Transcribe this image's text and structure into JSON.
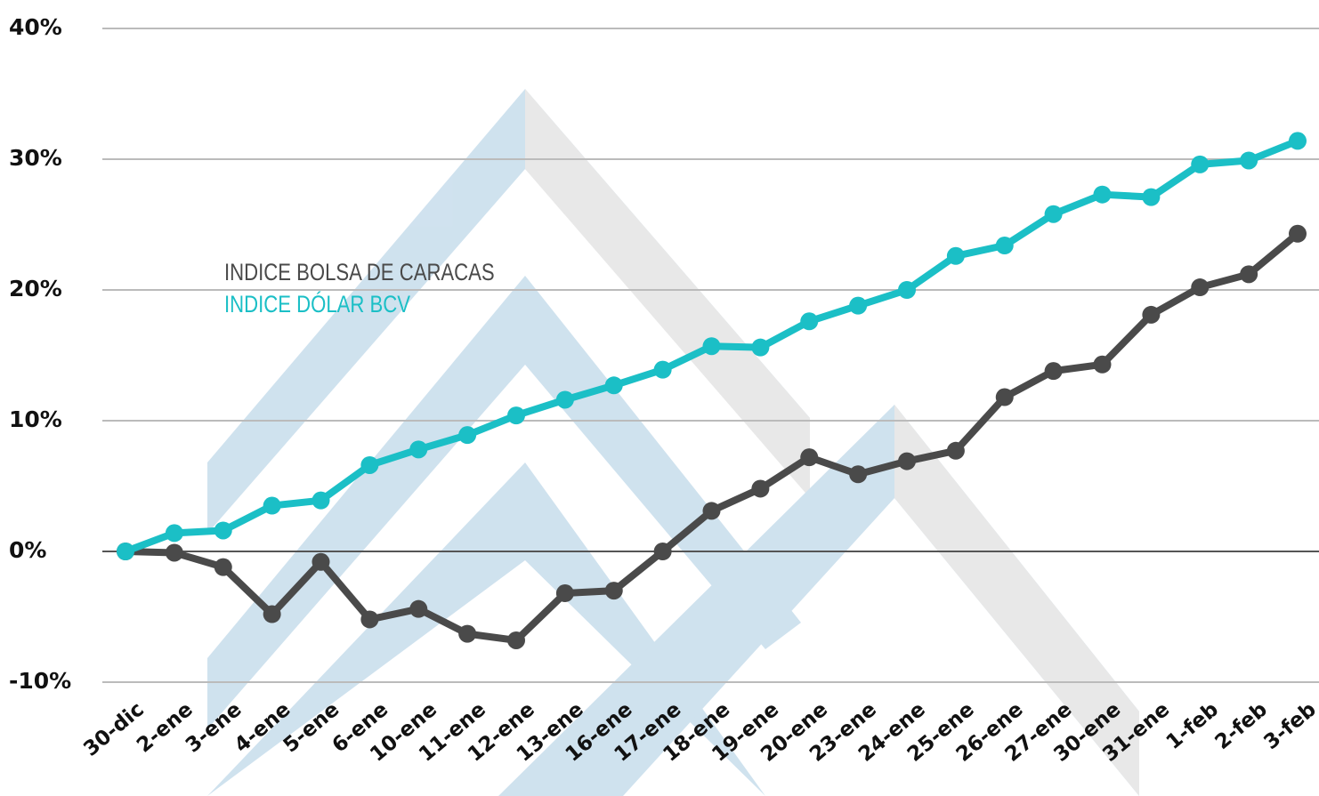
{
  "chart_data": {
    "type": "line",
    "categories": [
      "30-dic",
      "2-ene",
      "3-ene",
      "4-ene",
      "5-ene",
      "6-ene",
      "10-ene",
      "11-ene",
      "12-ene",
      "13-ene",
      "16-ene",
      "17-ene",
      "18-ene",
      "19-ene",
      "20-ene",
      "23-ene",
      "24-ene",
      "25-ene",
      "26-ene",
      "27-ene",
      "30-ene",
      "31-ene",
      "1-feb",
      "2-feb",
      "3-feb"
    ],
    "series": [
      {
        "name": "INDICE BOLSA DE CARACAS",
        "color": "#4a4a4a",
        "values": [
          0,
          -0.1,
          -1.2,
          -4.8,
          -0.8,
          -5.2,
          -4.4,
          -6.3,
          -6.8,
          -3.2,
          -3.0,
          0,
          3.1,
          4.8,
          7.2,
          5.9,
          6.9,
          7.7,
          11.8,
          13.8,
          14.3,
          18.1,
          20.2,
          21.2,
          24.3
        ]
      },
      {
        "name": "INDICE DÓLAR BCV",
        "color": "#1bbfc6",
        "values": [
          0,
          1.4,
          1.6,
          3.5,
          3.9,
          6.6,
          7.8,
          8.9,
          10.4,
          11.6,
          12.7,
          13.9,
          15.7,
          15.6,
          17.6,
          18.8,
          20.0,
          22.6,
          23.4,
          25.8,
          27.3,
          27.1,
          29.6,
          29.9,
          31.4
        ]
      }
    ],
    "ylim": [
      -10,
      40
    ],
    "yticks": [
      {
        "value": -10,
        "label": "-10%"
      },
      {
        "value": 0,
        "label": "0%"
      },
      {
        "value": 10,
        "label": "10%"
      },
      {
        "value": 20,
        "label": "20%"
      },
      {
        "value": 30,
        "label": "30%"
      },
      {
        "value": 40,
        "label": "40%"
      }
    ],
    "grid": true
  }
}
